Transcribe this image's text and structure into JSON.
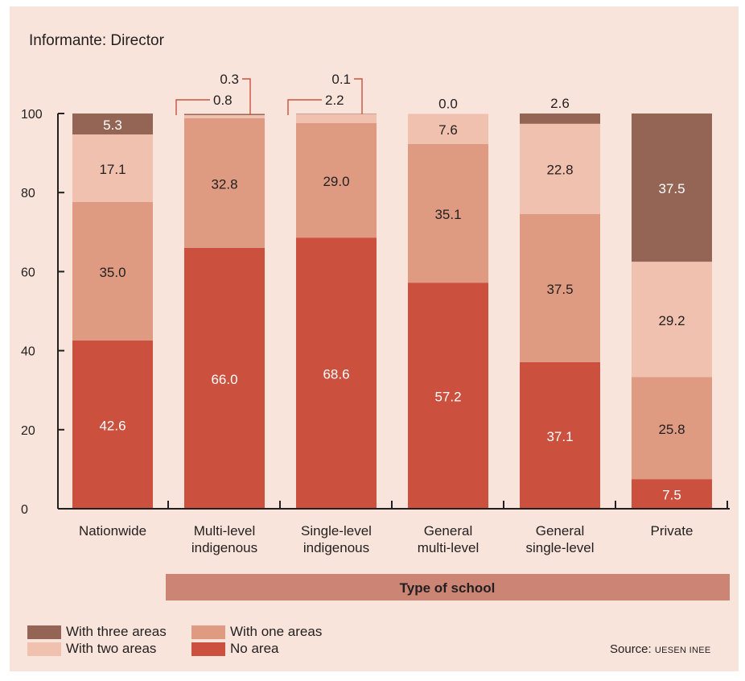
{
  "subtitle": "Informante: Director",
  "source": {
    "prefix": "Source:",
    "org": "UESEN INEE"
  },
  "colors": {
    "three": "#946554",
    "two": "#f0c1ae",
    "one": "#de9b82",
    "none": "#cb513e",
    "band": "#cc8574",
    "axis": "#231f20"
  },
  "legend": [
    {
      "key": "three",
      "label": "With three areas"
    },
    {
      "key": "two",
      "label": "With two areas"
    },
    {
      "key": "one",
      "label": "With one areas"
    },
    {
      "key": "none",
      "label": "No area"
    }
  ],
  "chart_data": {
    "type": "bar",
    "stacked": true,
    "xlabel": "Type of school",
    "ylim": [
      0,
      100
    ],
    "yticks": [
      0,
      20,
      40,
      60,
      80,
      100
    ],
    "categories": [
      [
        "Nationwide"
      ],
      [
        "Multi-level",
        "indigenous"
      ],
      [
        "Single-level",
        "indigenous"
      ],
      [
        "General",
        "multi-level"
      ],
      [
        "General",
        "single-level"
      ],
      [
        "Private"
      ]
    ],
    "series": [
      {
        "name": "No area",
        "key": "none",
        "values": [
          42.6,
          66.0,
          68.6,
          57.2,
          37.1,
          7.5
        ]
      },
      {
        "name": "With one areas",
        "key": "one",
        "values": [
          35.0,
          32.8,
          29.0,
          35.1,
          37.5,
          25.8
        ]
      },
      {
        "name": "With two areas",
        "key": "two",
        "values": [
          17.1,
          0.8,
          2.2,
          7.6,
          22.8,
          29.2
        ]
      },
      {
        "name": "With three areas",
        "key": "three",
        "values": [
          5.3,
          0.3,
          0.1,
          0.0,
          2.6,
          37.5
        ]
      }
    ],
    "value_labels": [
      [
        "42.6",
        "35.0",
        "17.1",
        "5.3"
      ],
      [
        "66.0",
        "32.8",
        "0.8",
        "0.3"
      ],
      [
        "68.6",
        "29.0",
        "2.2",
        "0.1"
      ],
      [
        "57.2",
        "35.1",
        "7.6",
        "0.0"
      ],
      [
        "37.1",
        "37.5",
        "22.8",
        "2.6"
      ],
      [
        "7.5",
        "25.8",
        "29.2",
        "37.5"
      ]
    ]
  }
}
